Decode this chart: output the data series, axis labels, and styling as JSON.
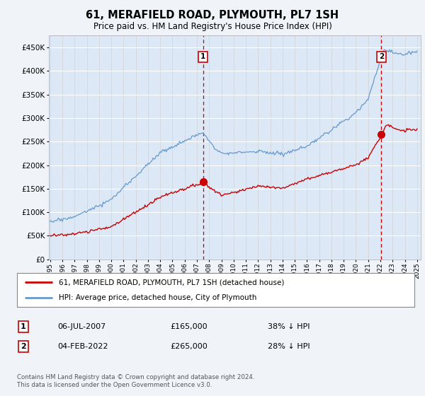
{
  "title": "61, MERAFIELD ROAD, PLYMOUTH, PL7 1SH",
  "subtitle": "Price paid vs. HM Land Registry's House Price Index (HPI)",
  "background_color": "#f0f4f8",
  "plot_bg_color": "#dce8f5",
  "ylim": [
    0,
    475000
  ],
  "yticks": [
    0,
    50000,
    100000,
    150000,
    200000,
    250000,
    300000,
    350000,
    400000,
    450000
  ],
  "x_start_year": 1995,
  "x_end_year": 2025,
  "sale1_date_label": "06-JUL-2007",
  "sale1_price": 165000,
  "sale1_pct": "38% ↓ HPI",
  "sale1_x": 2007.5,
  "sale2_date_label": "04-FEB-2022",
  "sale2_price": 265000,
  "sale2_pct": "28% ↓ HPI",
  "sale2_x": 2022.08,
  "red_line_color": "#cc0000",
  "blue_line_color": "#6699cc",
  "sale_marker_color": "#cc0000",
  "dashed_line_color": "#cc0000",
  "legend1_label": "61, MERAFIELD ROAD, PLYMOUTH, PL7 1SH (detached house)",
  "legend2_label": "HPI: Average price, detached house, City of Plymouth",
  "footer_text": "Contains HM Land Registry data © Crown copyright and database right 2024.\nThis data is licensed under the Open Government Licence v3.0."
}
